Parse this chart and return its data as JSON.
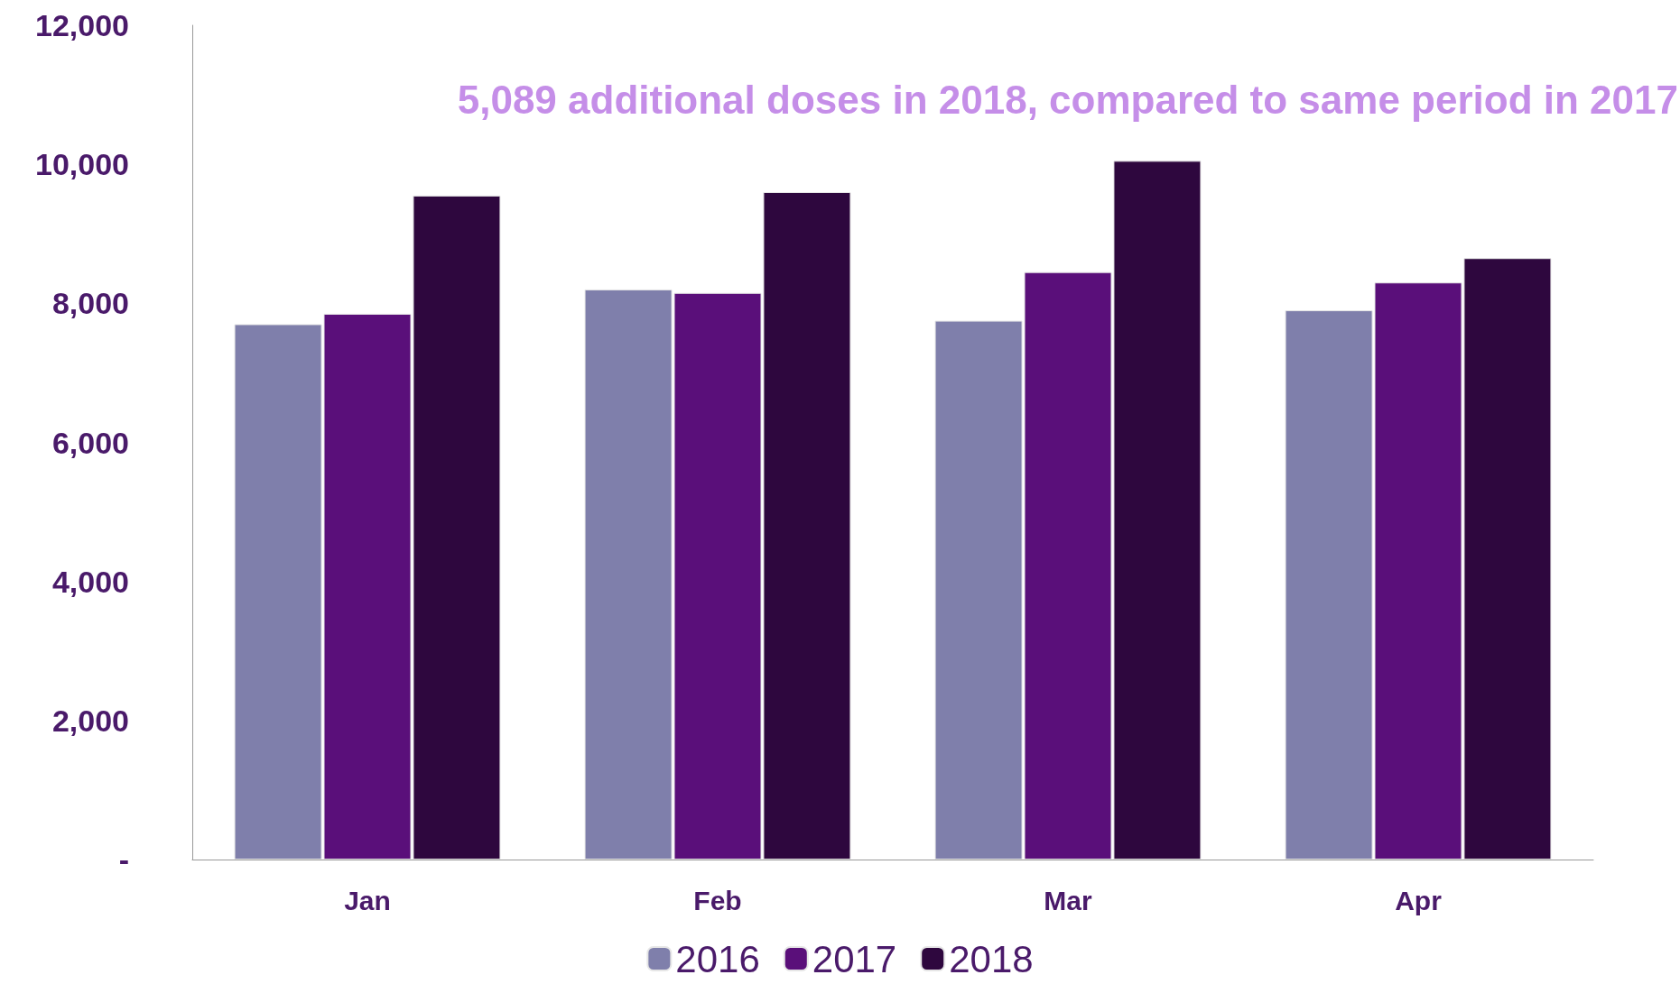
{
  "chart_data": {
    "type": "bar",
    "categories": [
      "Jan",
      "Feb",
      "Mar",
      "Apr"
    ],
    "series": [
      {
        "name": "2016",
        "color": "#7f7fab",
        "values": [
          7700,
          8200,
          7750,
          7900
        ]
      },
      {
        "name": "2017",
        "color": "#5a0f7a",
        "values": [
          7850,
          8150,
          8450,
          8300
        ]
      },
      {
        "name": "2018",
        "color": "#2e073e",
        "values": [
          9550,
          9600,
          10050,
          8650
        ]
      }
    ],
    "ylim": [
      0,
      12000
    ],
    "yticks": [
      {
        "value": 0,
        "label": "-"
      },
      {
        "value": 2000,
        "label": "2,000"
      },
      {
        "value": 4000,
        "label": "4,000"
      },
      {
        "value": 6000,
        "label": "6,000"
      },
      {
        "value": 8000,
        "label": "8,000"
      },
      {
        "value": 10000,
        "label": "10,000"
      },
      {
        "value": 12000,
        "label": "12,000"
      }
    ],
    "annotations": [
      "5,089 additional doses in 2018, compared to same period in 2017"
    ],
    "grid": false,
    "legend": "bottom"
  }
}
